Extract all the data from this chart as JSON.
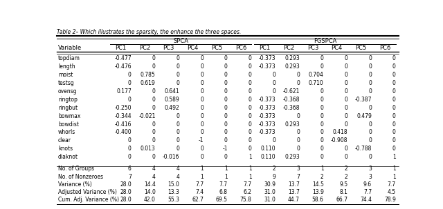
{
  "caption": "Table 2– Which illustrates the sparsity, the enhance the three spaces.",
  "col_groups": [
    "SPCA",
    "FGSPCA"
  ],
  "sub_cols": [
    "PC1",
    "PC2",
    "PC3",
    "PC4",
    "PC5",
    "PC6",
    "PC1",
    "PC2",
    "PC3",
    "PC4",
    "PC5",
    "PC6"
  ],
  "row_header": "Variable",
  "variables": [
    "topdiam",
    "length",
    "moist",
    "testsg",
    "ovensg",
    "ringtop",
    "ringbut",
    "bowmax",
    "bowdist",
    "whorls",
    "clear",
    "knots",
    "diaknot"
  ],
  "data": [
    [
      "-0.477",
      "0",
      "0",
      "0",
      "0",
      "0",
      "-0.373",
      "0.293",
      "0",
      "0",
      "0",
      "0"
    ],
    [
      "-0.476",
      "0",
      "0",
      "0",
      "0",
      "0",
      "-0.373",
      "0.293",
      "0",
      "0",
      "0",
      "0"
    ],
    [
      "0",
      "0.785",
      "0",
      "0",
      "0",
      "0",
      "0",
      "0",
      "0.704",
      "0",
      "0",
      "0"
    ],
    [
      "0",
      "0.619",
      "0",
      "0",
      "0",
      "0",
      "0",
      "0",
      "0.710",
      "0",
      "0",
      "0"
    ],
    [
      "0.177",
      "0",
      "0.641",
      "0",
      "0",
      "0",
      "0",
      "-0.621",
      "0",
      "0",
      "0",
      "0"
    ],
    [
      "0",
      "0",
      "0.589",
      "0",
      "0",
      "0",
      "-0.373",
      "-0.368",
      "0",
      "0",
      "-0.387",
      "0"
    ],
    [
      "-0.250",
      "0",
      "0.492",
      "0",
      "0",
      "0",
      "-0.373",
      "-0.368",
      "0",
      "0",
      "0",
      "0"
    ],
    [
      "-0.344",
      "-0.021",
      "0",
      "0",
      "0",
      "0",
      "-0.373",
      "0",
      "0",
      "0",
      "0.479",
      "0"
    ],
    [
      "-0.416",
      "0",
      "0",
      "0",
      "0",
      "0",
      "-0.373",
      "0.293",
      "0",
      "0",
      "0",
      "0"
    ],
    [
      "-0.400",
      "0",
      "0",
      "0",
      "0",
      "0",
      "-0.373",
      "0",
      "0",
      "0.418",
      "0",
      "0"
    ],
    [
      "0",
      "0",
      "0",
      "-1",
      "0",
      "0",
      "0",
      "0",
      "0",
      "-0.908",
      "0",
      "0"
    ],
    [
      "0",
      "0.013",
      "0",
      "0",
      "-1",
      "0",
      "0.110",
      "0",
      "0",
      "0",
      "-0.788",
      "0"
    ],
    [
      "0",
      "0",
      "-0.016",
      "0",
      "0",
      "1",
      "0.110",
      "0.293",
      "0",
      "0",
      "0",
      "1"
    ]
  ],
  "stat_rows": [
    [
      "No. of Groups",
      "6",
      "4",
      "4",
      "1",
      "1",
      "1",
      "2",
      "3",
      "1",
      "2",
      "3",
      "1"
    ],
    [
      "No. of Nonzeroes",
      "7",
      "4",
      "4",
      "1",
      "1",
      "1",
      "9",
      "7",
      "2",
      "2",
      "3",
      "1"
    ],
    [
      "Variance (%)",
      "28.0",
      "14.4",
      "15.0",
      "7.7",
      "7.7",
      "7.7",
      "30.9",
      "13.7",
      "14.5",
      "9.5",
      "9.6",
      "7.7"
    ],
    [
      "Adjusted Variance (%)",
      "28.0",
      "14.0",
      "13.3",
      "7.4",
      "6.8",
      "6.2",
      "31.0",
      "13.7",
      "13.9",
      "8.1",
      "7.7",
      "4.5"
    ],
    [
      "Cum. Adj. Variance (%)",
      "28.0",
      "42.0",
      "55.3",
      "62.7",
      "69.5",
      "75.8",
      "31.0",
      "44.7",
      "58.6",
      "66.7",
      "74.4",
      "78.9"
    ]
  ],
  "font_size": 5.5,
  "header_font_size": 6.0,
  "caption_font_size": 5.5
}
